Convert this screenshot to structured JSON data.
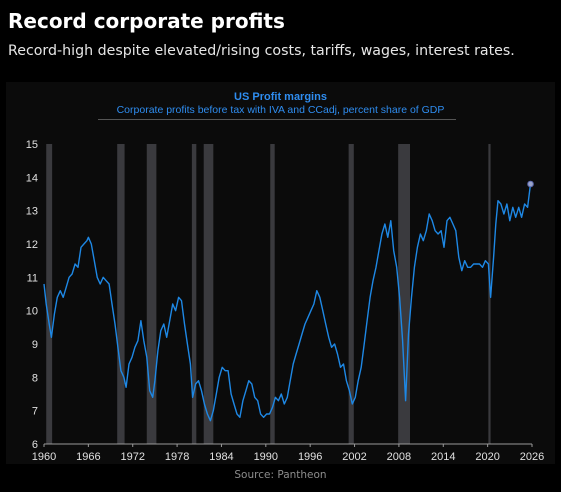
{
  "page": {
    "headline": "Record corporate profits",
    "subheadline": "Record-high despite elevated/rising costs, tariffs, wages, interest rates.",
    "source": "Source: Pantheon"
  },
  "chart_data": {
    "type": "line",
    "title": "US Profit margins",
    "subtitle": "Corporate profits before tax with IVA and CCadj, percent share of GDP",
    "xlabel": "",
    "ylabel": "",
    "xlim": [
      1960,
      2026
    ],
    "ylim": [
      6,
      15
    ],
    "x_ticks": [
      1960,
      1966,
      1972,
      1978,
      1984,
      1990,
      1996,
      2002,
      2008,
      2014,
      2020,
      2026
    ],
    "y_ticks": [
      6,
      7,
      8,
      9,
      10,
      11,
      12,
      13,
      14,
      15
    ],
    "grid": false,
    "legend": "none",
    "line_color": "#1e88e5",
    "recession_color": "#3a3a3e",
    "recessions": [
      [
        1960.3,
        1961.1
      ],
      [
        1969.9,
        1970.9
      ],
      [
        1973.9,
        1975.2
      ],
      [
        1980.0,
        1980.6
      ],
      [
        1981.6,
        1982.9
      ],
      [
        1990.6,
        1991.2
      ],
      [
        2001.2,
        2001.9
      ],
      [
        2007.9,
        2009.5
      ],
      [
        2020.1,
        2020.4
      ]
    ],
    "series": [
      {
        "values": [
          [
            1960.0,
            10.8
          ],
          [
            1960.3,
            10.2
          ],
          [
            1960.7,
            9.6
          ],
          [
            1961.0,
            9.2
          ],
          [
            1961.4,
            9.9
          ],
          [
            1961.8,
            10.4
          ],
          [
            1962.2,
            10.6
          ],
          [
            1962.6,
            10.4
          ],
          [
            1963.0,
            10.7
          ],
          [
            1963.4,
            11.0
          ],
          [
            1963.8,
            11.1
          ],
          [
            1964.2,
            11.4
          ],
          [
            1964.6,
            11.3
          ],
          [
            1965.0,
            11.9
          ],
          [
            1965.4,
            12.0
          ],
          [
            1965.8,
            12.1
          ],
          [
            1966.0,
            12.2
          ],
          [
            1966.4,
            12.0
          ],
          [
            1966.8,
            11.5
          ],
          [
            1967.2,
            11.0
          ],
          [
            1967.6,
            10.8
          ],
          [
            1968.0,
            11.0
          ],
          [
            1968.4,
            10.9
          ],
          [
            1968.8,
            10.8
          ],
          [
            1969.2,
            10.2
          ],
          [
            1969.6,
            9.6
          ],
          [
            1970.0,
            8.9
          ],
          [
            1970.4,
            8.2
          ],
          [
            1970.8,
            8.0
          ],
          [
            1971.1,
            7.7
          ],
          [
            1971.5,
            8.4
          ],
          [
            1971.9,
            8.6
          ],
          [
            1972.3,
            8.9
          ],
          [
            1972.7,
            9.1
          ],
          [
            1973.1,
            9.7
          ],
          [
            1973.5,
            9.1
          ],
          [
            1973.9,
            8.6
          ],
          [
            1974.3,
            7.6
          ],
          [
            1974.7,
            7.4
          ],
          [
            1975.0,
            7.9
          ],
          [
            1975.4,
            8.8
          ],
          [
            1975.8,
            9.4
          ],
          [
            1976.2,
            9.6
          ],
          [
            1976.6,
            9.2
          ],
          [
            1977.0,
            9.7
          ],
          [
            1977.4,
            10.2
          ],
          [
            1977.8,
            10.0
          ],
          [
            1978.2,
            10.4
          ],
          [
            1978.6,
            10.3
          ],
          [
            1979.0,
            9.6
          ],
          [
            1979.4,
            9.0
          ],
          [
            1979.8,
            8.4
          ],
          [
            1980.1,
            7.4
          ],
          [
            1980.5,
            7.8
          ],
          [
            1980.9,
            7.9
          ],
          [
            1981.3,
            7.6
          ],
          [
            1981.7,
            7.2
          ],
          [
            1982.1,
            6.9
          ],
          [
            1982.5,
            6.7
          ],
          [
            1982.9,
            7.0
          ],
          [
            1983.3,
            7.5
          ],
          [
            1983.7,
            8.0
          ],
          [
            1984.1,
            8.3
          ],
          [
            1984.5,
            8.2
          ],
          [
            1984.9,
            8.2
          ],
          [
            1985.3,
            7.5
          ],
          [
            1985.7,
            7.2
          ],
          [
            1986.1,
            6.9
          ],
          [
            1986.5,
            6.8
          ],
          [
            1986.9,
            7.3
          ],
          [
            1987.3,
            7.6
          ],
          [
            1987.7,
            7.9
          ],
          [
            1988.1,
            7.8
          ],
          [
            1988.5,
            7.4
          ],
          [
            1988.9,
            7.3
          ],
          [
            1989.3,
            6.9
          ],
          [
            1989.7,
            6.8
          ],
          [
            1990.1,
            6.9
          ],
          [
            1990.5,
            6.9
          ],
          [
            1990.9,
            7.1
          ],
          [
            1991.3,
            7.4
          ],
          [
            1991.7,
            7.3
          ],
          [
            1992.1,
            7.5
          ],
          [
            1992.5,
            7.2
          ],
          [
            1992.9,
            7.4
          ],
          [
            1993.3,
            7.9
          ],
          [
            1993.7,
            8.4
          ],
          [
            1994.1,
            8.7
          ],
          [
            1994.5,
            9.0
          ],
          [
            1994.9,
            9.3
          ],
          [
            1995.3,
            9.6
          ],
          [
            1995.7,
            9.8
          ],
          [
            1996.1,
            10.0
          ],
          [
            1996.5,
            10.2
          ],
          [
            1996.9,
            10.6
          ],
          [
            1997.3,
            10.4
          ],
          [
            1997.7,
            10.0
          ],
          [
            1998.1,
            9.6
          ],
          [
            1998.5,
            9.2
          ],
          [
            1998.9,
            8.9
          ],
          [
            1999.3,
            9.0
          ],
          [
            1999.7,
            8.7
          ],
          [
            2000.1,
            8.3
          ],
          [
            2000.5,
            8.4
          ],
          [
            2000.9,
            7.9
          ],
          [
            2001.3,
            7.6
          ],
          [
            2001.7,
            7.2
          ],
          [
            2002.1,
            7.4
          ],
          [
            2002.5,
            7.9
          ],
          [
            2002.9,
            8.3
          ],
          [
            2003.3,
            9.0
          ],
          [
            2003.7,
            9.7
          ],
          [
            2004.1,
            10.4
          ],
          [
            2004.5,
            10.9
          ],
          [
            2004.9,
            11.3
          ],
          [
            2005.3,
            11.8
          ],
          [
            2005.7,
            12.3
          ],
          [
            2006.1,
            12.6
          ],
          [
            2006.5,
            12.2
          ],
          [
            2006.9,
            12.7
          ],
          [
            2007.3,
            11.8
          ],
          [
            2007.7,
            11.3
          ],
          [
            2008.1,
            10.4
          ],
          [
            2008.5,
            9.1
          ],
          [
            2008.9,
            7.3
          ],
          [
            2009.3,
            9.3
          ],
          [
            2009.7,
            10.4
          ],
          [
            2010.1,
            11.3
          ],
          [
            2010.5,
            11.9
          ],
          [
            2010.9,
            12.3
          ],
          [
            2011.3,
            12.1
          ],
          [
            2011.7,
            12.4
          ],
          [
            2012.1,
            12.9
          ],
          [
            2012.5,
            12.7
          ],
          [
            2012.9,
            12.4
          ],
          [
            2013.3,
            12.3
          ],
          [
            2013.7,
            12.4
          ],
          [
            2014.1,
            11.9
          ],
          [
            2014.5,
            12.7
          ],
          [
            2014.9,
            12.8
          ],
          [
            2015.3,
            12.6
          ],
          [
            2015.7,
            12.4
          ],
          [
            2016.1,
            11.6
          ],
          [
            2016.5,
            11.2
          ],
          [
            2016.9,
            11.5
          ],
          [
            2017.3,
            11.3
          ],
          [
            2017.7,
            11.3
          ],
          [
            2018.1,
            11.4
          ],
          [
            2018.5,
            11.4
          ],
          [
            2018.9,
            11.4
          ],
          [
            2019.3,
            11.3
          ],
          [
            2019.7,
            11.5
          ],
          [
            2020.1,
            11.4
          ],
          [
            2020.4,
            10.4
          ],
          [
            2020.8,
            11.6
          ],
          [
            2021.1,
            12.6
          ],
          [
            2021.4,
            13.3
          ],
          [
            2021.8,
            13.2
          ],
          [
            2022.2,
            12.9
          ],
          [
            2022.6,
            13.2
          ],
          [
            2023.0,
            12.7
          ],
          [
            2023.4,
            13.1
          ],
          [
            2023.8,
            12.8
          ],
          [
            2024.2,
            13.1
          ],
          [
            2024.6,
            12.8
          ],
          [
            2025.0,
            13.2
          ],
          [
            2025.4,
            13.1
          ],
          [
            2025.8,
            13.8
          ]
        ]
      }
    ]
  }
}
